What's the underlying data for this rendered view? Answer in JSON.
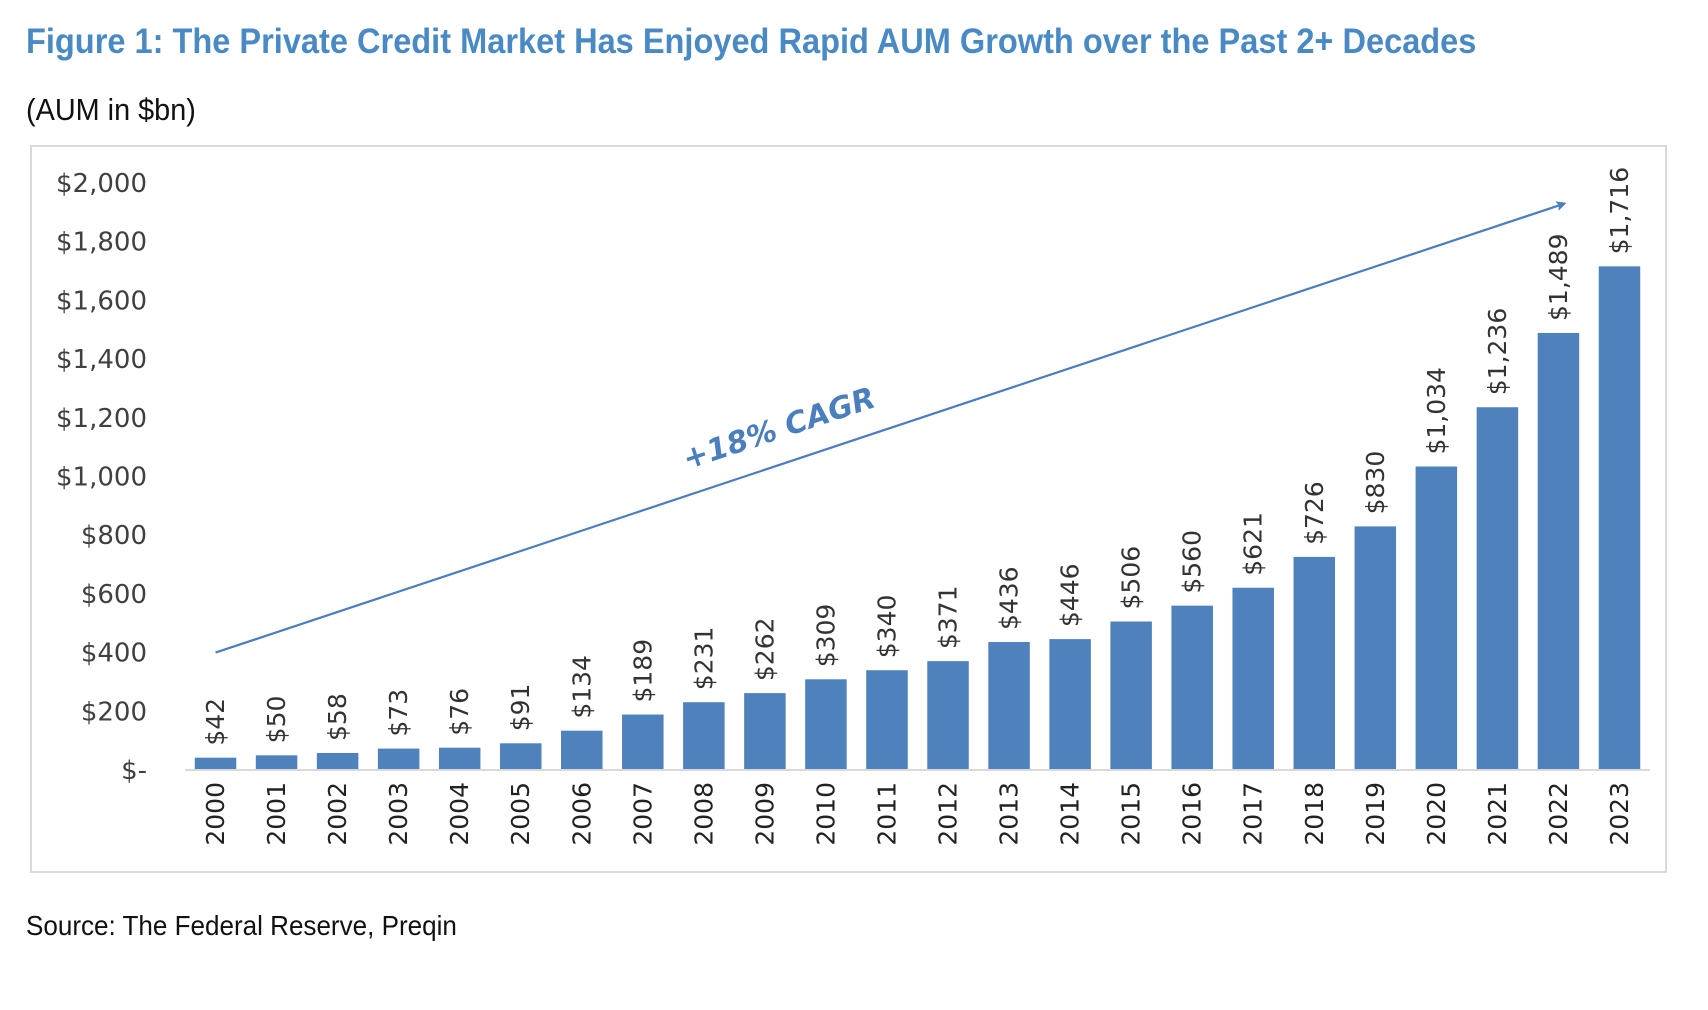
{
  "figure": {
    "title": "Figure 1: The Private Credit Market Has Enjoyed Rapid AUM Growth over the Past 2+ Decades",
    "subtitle": "(AUM in $bn)",
    "source": "Source: The Federal Reserve, Preqin"
  },
  "colors": {
    "bar": "#4f81bd",
    "title": "#4a8ac4",
    "annotation": "#4a7ebd",
    "axis_text": "#404040"
  },
  "chart_data": {
    "type": "bar",
    "title": "",
    "xlabel": "",
    "ylabel": "",
    "ylim": [
      0,
      2000
    ],
    "yticks": [
      0,
      200,
      400,
      600,
      800,
      1000,
      1200,
      1400,
      1600,
      1800,
      2000
    ],
    "ytick_labels": [
      "$-",
      "$200",
      "$400",
      "$600",
      "$800",
      "$1,000",
      "$1,200",
      "$1,400",
      "$1,600",
      "$1,800",
      "$2,000"
    ],
    "categories": [
      "2000",
      "2001",
      "2002",
      "2003",
      "2004",
      "2005",
      "2006",
      "2007",
      "2008",
      "2009",
      "2010",
      "2011",
      "2012",
      "2013",
      "2014",
      "2015",
      "2016",
      "2017",
      "2018",
      "2019",
      "2020",
      "2021",
      "2022",
      "2023"
    ],
    "values": [
      42,
      50,
      58,
      73,
      76,
      91,
      134,
      189,
      231,
      262,
      309,
      340,
      371,
      436,
      446,
      506,
      560,
      621,
      726,
      830,
      1034,
      1236,
      1489,
      1716
    ],
    "data_labels": [
      "$42",
      "$50",
      "$58",
      "$73",
      "$76",
      "$91",
      "$134",
      "$189",
      "$231",
      "$262",
      "$309",
      "$340",
      "$371",
      "$436",
      "$446",
      "$506",
      "$560",
      "$621",
      "$726",
      "$830",
      "$1,034",
      "$1,236",
      "$1,489",
      "$1,716"
    ],
    "grid": false,
    "legend": "none",
    "annotation": {
      "text": "+18% CAGR",
      "arrow_from": {
        "category": "2000",
        "value": 400
      },
      "arrow_to": {
        "category": "2023",
        "value": 1930
      }
    }
  }
}
